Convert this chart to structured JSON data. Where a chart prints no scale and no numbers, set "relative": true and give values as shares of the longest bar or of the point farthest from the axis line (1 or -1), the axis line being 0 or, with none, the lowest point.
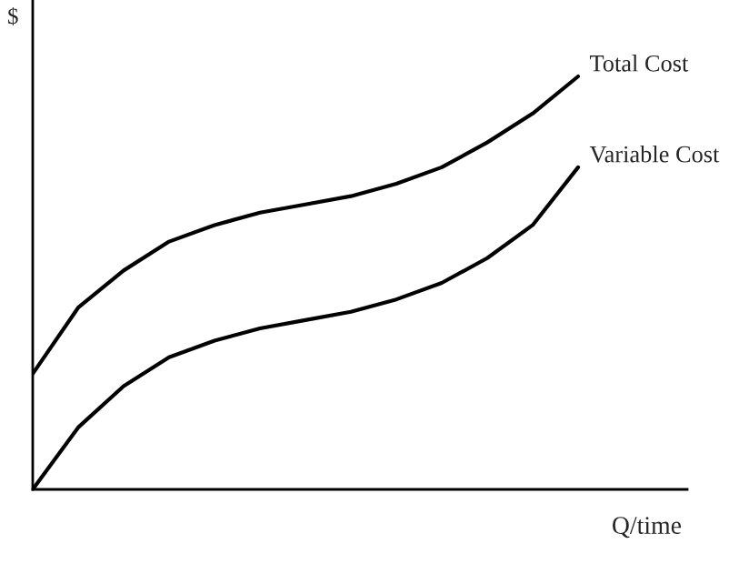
{
  "chart_data": {
    "type": "line",
    "relative": true,
    "ylabel": "$",
    "xlabel": "Q/time",
    "legend": false,
    "marker": "none",
    "line_style": "solid",
    "categories": [
      null,
      null,
      null,
      null,
      null,
      null,
      null,
      null,
      null,
      null,
      null,
      null,
      null
    ],
    "series": [
      {
        "name": "Total Cost",
        "color": "#000000",
        "values": [
          0.28,
          0.44,
          0.53,
          0.6,
          0.64,
          0.67,
          0.69,
          0.71,
          0.74,
          0.78,
          0.84,
          0.91,
          1
        ]
      },
      {
        "name": "Variable Cost",
        "color": "#000000",
        "values": [
          0,
          0.15,
          0.25,
          0.32,
          0.36,
          0.39,
          0.41,
          0.43,
          0.46,
          0.5,
          0.56,
          0.64,
          0.78
        ]
      }
    ]
  }
}
